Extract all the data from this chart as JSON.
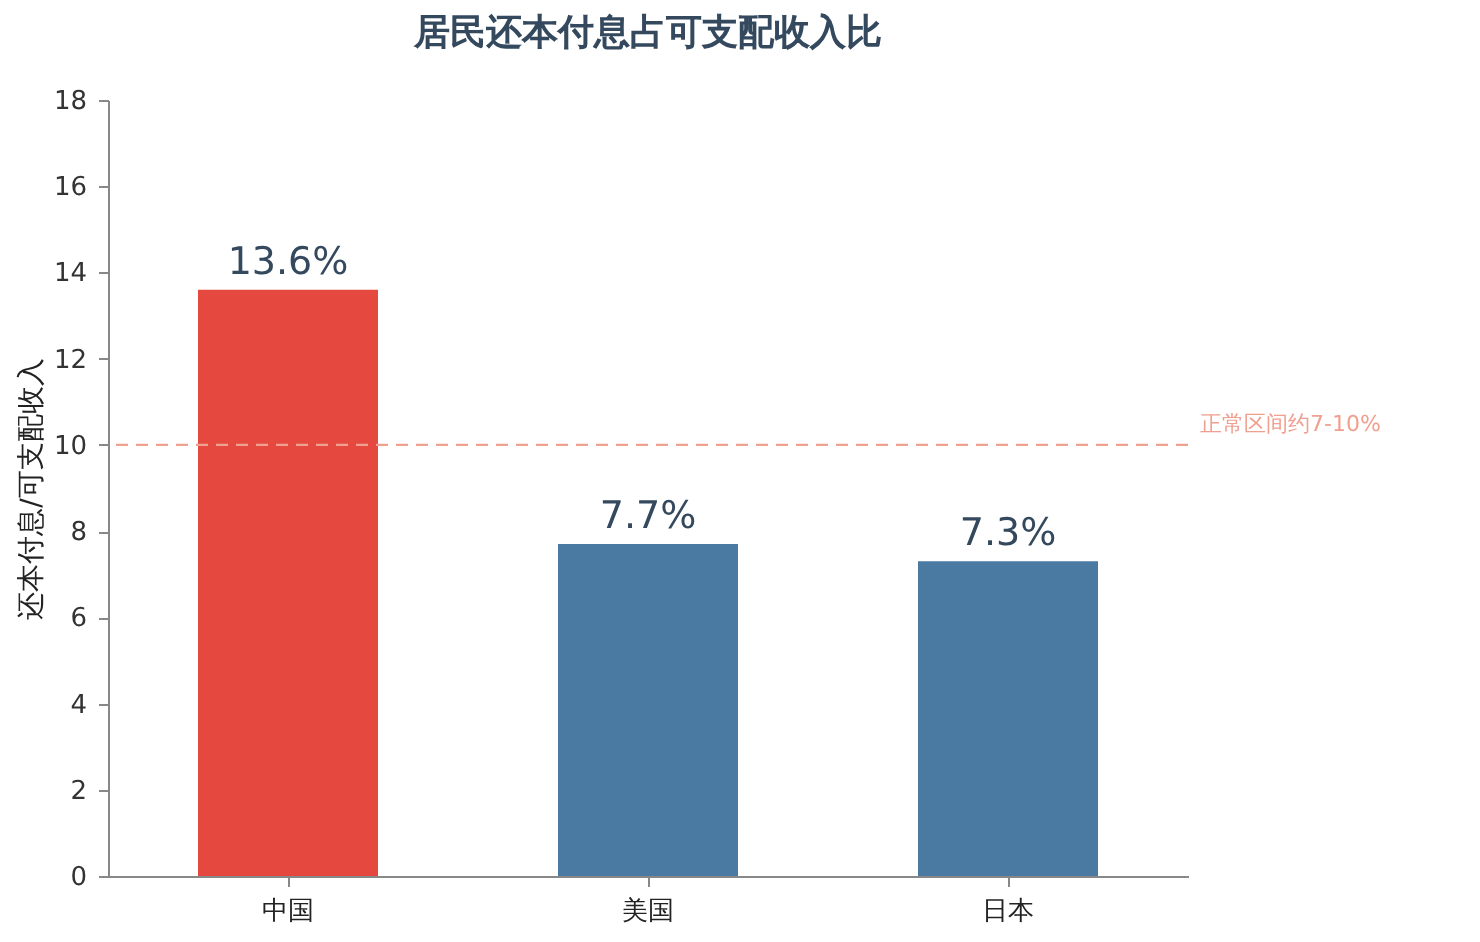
{
  "chart_data": {
    "type": "bar",
    "title": "居民还本付息占可支配收入比",
    "ylabel": "还本付息/可支配收入",
    "categories": [
      "中国",
      "美国",
      "日本"
    ],
    "values": [
      13.6,
      7.7,
      7.3
    ],
    "colors": [
      "#e5483f",
      "#4a7aa2",
      "#4a7aa2"
    ],
    "value_labels": [
      "13.6%",
      "7.7%",
      "7.3%"
    ],
    "ylim": [
      0,
      18
    ],
    "yticks": [
      0,
      2,
      4,
      6,
      8,
      10,
      12,
      14,
      16,
      18
    ],
    "ref_lines": [
      {
        "axis": "y",
        "value": 10,
        "label": "正常区间约7-10%",
        "color": "#f0a090",
        "line_style": "dashed"
      }
    ],
    "grid": false,
    "legend": false
  }
}
